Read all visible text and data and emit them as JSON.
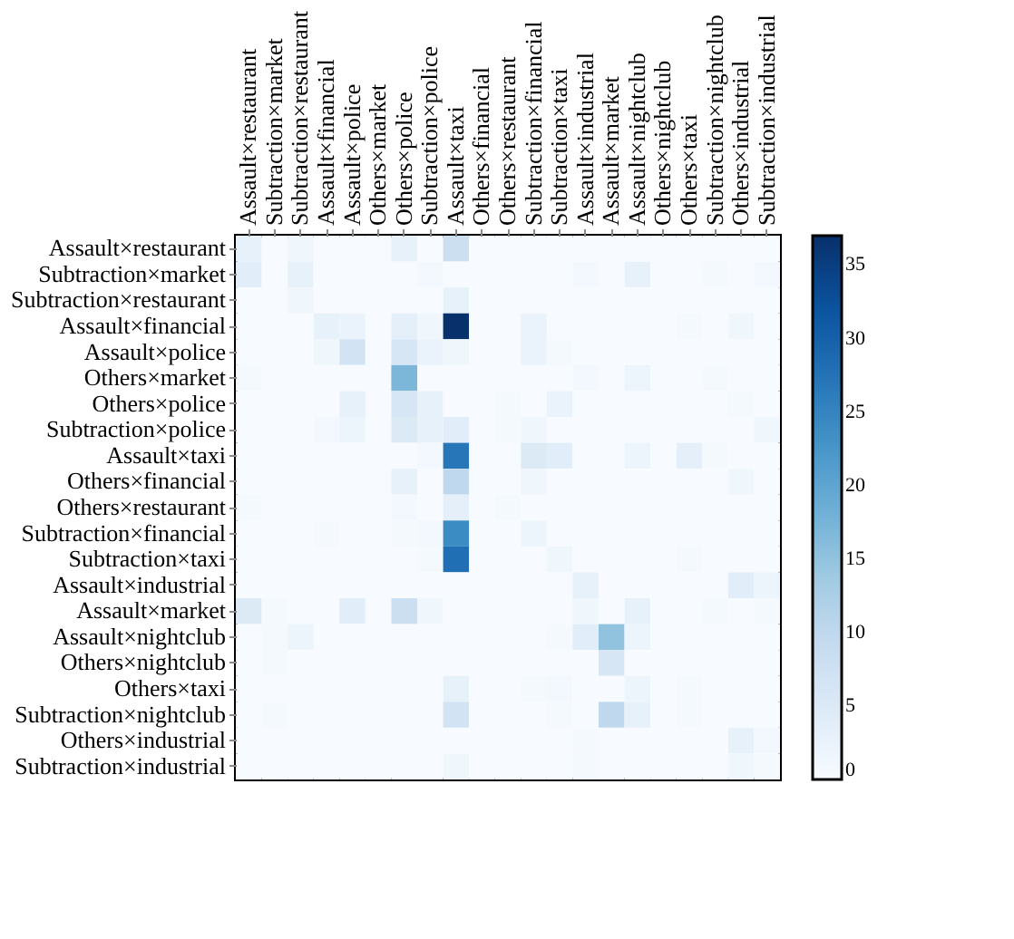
{
  "chart_data": {
    "type": "heatmap",
    "categories": [
      "Assault×restaurant",
      "Subtraction×market",
      "Subtraction×restaurant",
      "Assault×financial",
      "Assault×police",
      "Others×market",
      "Others×police",
      "Subtraction×police",
      "Assault×taxi",
      "Others×financial",
      "Others×restaurant",
      "Subtraction×financial",
      "Subtraction×taxi",
      "Assault×industrial",
      "Assault×market",
      "Assault×nightclub",
      "Others×nightclub",
      "Others×taxi",
      "Subtraction×nightclub",
      "Others×industrial",
      "Subtraction×industrial"
    ],
    "y_categories": [
      "Assault×restaurant",
      "Subtraction×market",
      "Subtraction×restaurant",
      "Assault×financial",
      "Assault×police",
      "Others×market",
      "Others×police",
      "Subtraction×police",
      "Assault×taxi",
      "Others×financial",
      "Others×restaurant",
      "Subtraction×financial",
      "Subtraction×taxi",
      "Assault×industrial",
      "Assault×market",
      "Assault×nightclub",
      "Others×nightclub",
      "Others×taxi",
      "Subtraction×nightclub",
      "Others×industrial",
      "Subtraction×industrial"
    ],
    "cells": [
      [
        3,
        0,
        1.5,
        0,
        0,
        0,
        3,
        0,
        8,
        0,
        0,
        0,
        0,
        0,
        0,
        0,
        0,
        0,
        0,
        0,
        0
      ],
      [
        4,
        0,
        3,
        0,
        0,
        0,
        0,
        1,
        0,
        0,
        0,
        0,
        0,
        1,
        0,
        3,
        0,
        0,
        0.5,
        0,
        1
      ],
      [
        0,
        0,
        1.5,
        0,
        0,
        0,
        0,
        0,
        3,
        0,
        0,
        0,
        0,
        0,
        0,
        0,
        0,
        0,
        0,
        0,
        0
      ],
      [
        0,
        0,
        0,
        3,
        2.5,
        0,
        3.5,
        1.5,
        37,
        0,
        0,
        2.5,
        0,
        0,
        0,
        0,
        0,
        0.5,
        0,
        1.5,
        0
      ],
      [
        0,
        0,
        0,
        1.5,
        7,
        0,
        6,
        2.5,
        1.5,
        0,
        0,
        2.5,
        0.5,
        0,
        0,
        0,
        0,
        0,
        0,
        0,
        0
      ],
      [
        0.5,
        0,
        0,
        0,
        0,
        0,
        17,
        0,
        0,
        0,
        0,
        0,
        0,
        1,
        0,
        2,
        0,
        0,
        0.5,
        0,
        0
      ],
      [
        0,
        0,
        0,
        0,
        3,
        0,
        6,
        3,
        0,
        0,
        0.5,
        0,
        2.5,
        0,
        0,
        0,
        0,
        0,
        0,
        0.5,
        0
      ],
      [
        0,
        0,
        0,
        1,
        2,
        0,
        5,
        3,
        4,
        0,
        0.5,
        1.5,
        0,
        0,
        0,
        0,
        0,
        0,
        0,
        0,
        1.5
      ],
      [
        0,
        0,
        0,
        0,
        0,
        0,
        0,
        1,
        27,
        0,
        0,
        5,
        4,
        0,
        0,
        2,
        0,
        3.5,
        0.5,
        0,
        0
      ],
      [
        0,
        0,
        0,
        0,
        0,
        0,
        3,
        0,
        10,
        0,
        0,
        1.5,
        0,
        0,
        0,
        0,
        0,
        0,
        0,
        1.5,
        0
      ],
      [
        0.5,
        0,
        0,
        0,
        0,
        0,
        1,
        0,
        3.5,
        0,
        0.5,
        0,
        0,
        0,
        0,
        0,
        0,
        0,
        0,
        0,
        0
      ],
      [
        0,
        0,
        0,
        0.5,
        0,
        0,
        0.5,
        1,
        24,
        0,
        0,
        2,
        0,
        0,
        0,
        0,
        0,
        0,
        0,
        0,
        0
      ],
      [
        0,
        0,
        0,
        0,
        0,
        0,
        0,
        0.5,
        28,
        0,
        0,
        0,
        1.5,
        0,
        0,
        0,
        0,
        0.5,
        0,
        0,
        0
      ],
      [
        0,
        0,
        0,
        0,
        0,
        0,
        0,
        0,
        0,
        0,
        0,
        0,
        0,
        3,
        0,
        0,
        0,
        0,
        0,
        4,
        2
      ],
      [
        5,
        0.5,
        0,
        0,
        4,
        0,
        8,
        1.5,
        0,
        0,
        0,
        0,
        0,
        1.5,
        0,
        3,
        0,
        0,
        0.5,
        0,
        0.5
      ],
      [
        0,
        0.5,
        2,
        0,
        0,
        0,
        0,
        0,
        0,
        0,
        0,
        0,
        0.5,
        4,
        15,
        2,
        0,
        0,
        0,
        0,
        0
      ],
      [
        0,
        0.5,
        0,
        0,
        0,
        0,
        0,
        0,
        0,
        0,
        0,
        0,
        0,
        0,
        6,
        0,
        0,
        0,
        0,
        0,
        0
      ],
      [
        0,
        0,
        0,
        0,
        0,
        0,
        0,
        0,
        3,
        0,
        0,
        0.5,
        1,
        0,
        0,
        2,
        0,
        0.5,
        0,
        0,
        0
      ],
      [
        0,
        0.5,
        0,
        0,
        0,
        0,
        0,
        0,
        7,
        0,
        0,
        0,
        0.5,
        0,
        10,
        3,
        0,
        0.5,
        0,
        0,
        0
      ],
      [
        0,
        0,
        0,
        0,
        0,
        0,
        0,
        0,
        0,
        0,
        0,
        0,
        0,
        0.5,
        0,
        0,
        0,
        0,
        0,
        3,
        1
      ],
      [
        0,
        0,
        0,
        0,
        0,
        0,
        0,
        0,
        1.5,
        0,
        0,
        0,
        0,
        0.5,
        0,
        0,
        0,
        0,
        0,
        1.5,
        0.5
      ]
    ],
    "clim": [
      0,
      37
    ],
    "cticks": [
      0,
      5,
      10,
      15,
      20,
      25,
      30,
      35
    ]
  }
}
